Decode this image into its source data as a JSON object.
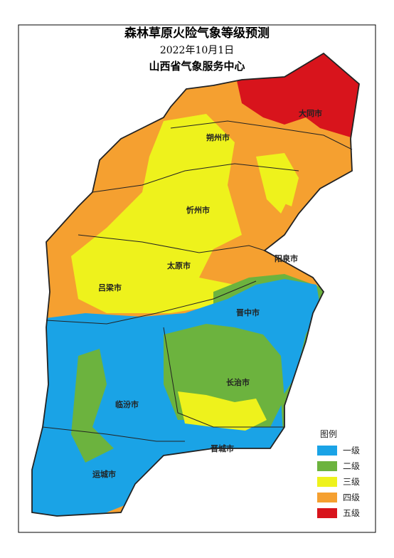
{
  "header": {
    "title": "森林草原火险气象等级预测",
    "date": "2022年10月1日",
    "issuer": "山西省气象服务中心"
  },
  "legend": {
    "title": "图例",
    "items": [
      {
        "label": "一级",
        "color": "#1aa3e6"
      },
      {
        "label": "二级",
        "color": "#6cb33e"
      },
      {
        "label": "三级",
        "color": "#eef21c"
      },
      {
        "label": "四级",
        "color": "#f5a030"
      },
      {
        "label": "五级",
        "color": "#d8141c"
      }
    ]
  },
  "cities": [
    "大同市",
    "朔州市",
    "忻州市",
    "太原市",
    "阳泉市",
    "吕梁市",
    "晋中市",
    "长治市",
    "临汾市",
    "晋城市",
    "运城市"
  ]
}
